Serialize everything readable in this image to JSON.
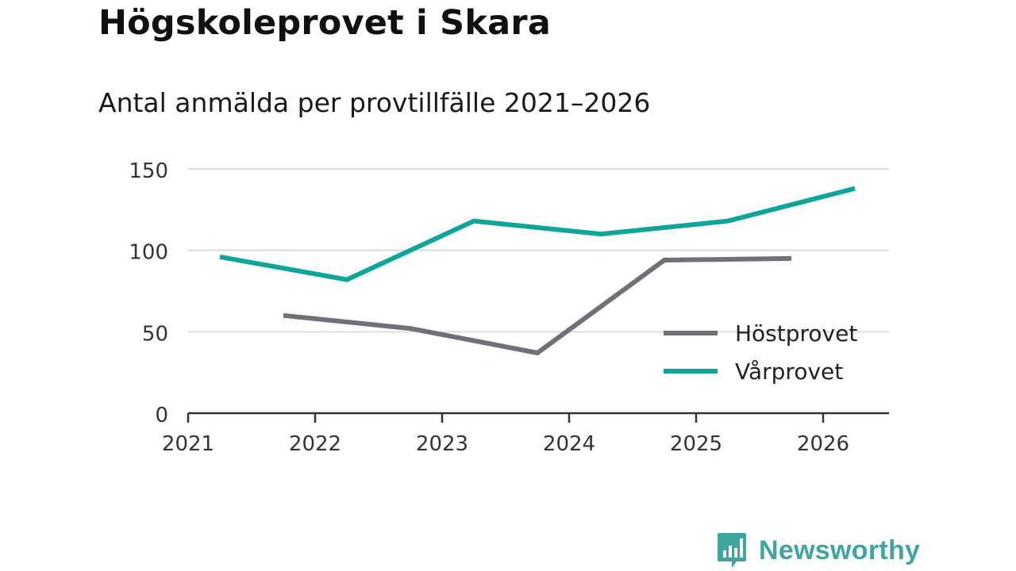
{
  "title": "Högskoleprovet i Skara",
  "subtitle": "Antal anmälda per provtillfälle 2021–2026",
  "brand": {
    "name": "Newsworthy",
    "color": "#3fa59d"
  },
  "chart_data": {
    "type": "line",
    "title": "Högskoleprovet i Skara",
    "subtitle": "Antal anmälda per provtillfälle 2021–2026",
    "xlabel": "",
    "ylabel": "",
    "ylim": [
      0,
      150
    ],
    "yticks": [
      0,
      50,
      100,
      150
    ],
    "xticks": [
      "2021",
      "2022",
      "2023",
      "2024",
      "2025",
      "2026"
    ],
    "grid": true,
    "legend_position": "bottom-right",
    "series": [
      {
        "name": "Höstprovet",
        "color": "#707078",
        "points": [
          {
            "x": "2021-10",
            "y": 60
          },
          {
            "x": "2022-10",
            "y": 52
          },
          {
            "x": "2023-10",
            "y": 37
          },
          {
            "x": "2024-10",
            "y": 94
          },
          {
            "x": "2025-10",
            "y": 95
          }
        ]
      },
      {
        "name": "Vårprovet",
        "color": "#0ea59b",
        "points": [
          {
            "x": "2021-04",
            "y": 96
          },
          {
            "x": "2022-04",
            "y": 82
          },
          {
            "x": "2023-04",
            "y": 118
          },
          {
            "x": "2024-04",
            "y": 110
          },
          {
            "x": "2025-04",
            "y": 118
          },
          {
            "x": "2026-04",
            "y": 138
          }
        ]
      }
    ]
  }
}
